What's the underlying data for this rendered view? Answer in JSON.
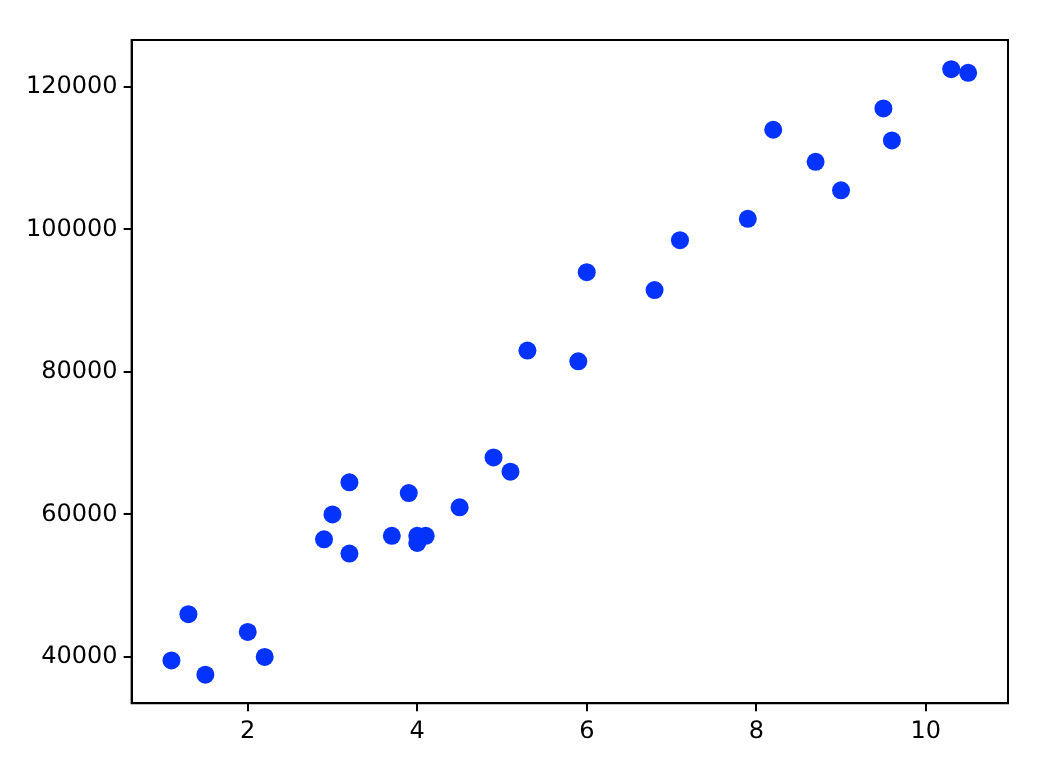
{
  "chart_data": {
    "type": "scatter",
    "marker": "circle",
    "grid": false,
    "legend": false,
    "xlim": [
      0.63,
      10.97
    ],
    "xticks": [
      2,
      4,
      6,
      8,
      10
    ],
    "ylim": [
      33500,
      126600
    ],
    "yticks": [
      40000,
      60000,
      80000,
      100000,
      120000
    ],
    "series": [
      {
        "color": "#0433ff",
        "x": [
          1.1,
          1.3,
          1.5,
          2.0,
          2.2,
          2.9,
          3.0,
          3.2,
          3.2,
          3.7,
          3.9,
          4.0,
          4.0,
          4.1,
          4.5,
          4.9,
          5.1,
          5.3,
          5.9,
          6.0,
          6.8,
          7.1,
          7.9,
          8.2,
          8.7,
          9.0,
          9.5,
          9.6,
          10.3,
          10.5
        ],
        "values": [
          39500,
          46000,
          37500,
          43500,
          40000,
          56500,
          60000,
          54500,
          64500,
          57000,
          63000,
          56000,
          57000,
          57000,
          61000,
          68000,
          66000,
          83000,
          81500,
          94000,
          91500,
          98500,
          101500,
          114000,
          109500,
          105500,
          117000,
          112500,
          122500,
          122000
        ]
      }
    ]
  }
}
